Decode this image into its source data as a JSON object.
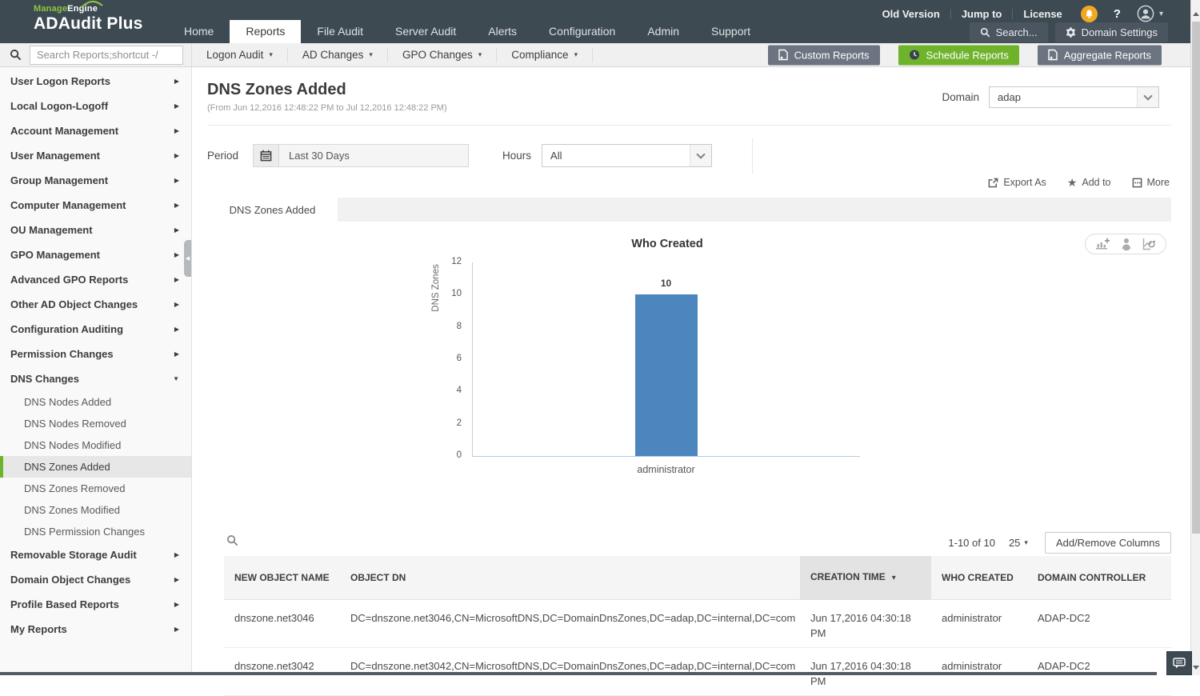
{
  "colors": {
    "header_bg": "#3e4a52",
    "accent_green": "#6fb32c",
    "button_gray": "#6b7480",
    "bar_blue": "#4d86be",
    "notification_amber": "#f0a822"
  },
  "header": {
    "brand_manage": "Manage",
    "brand_engine": "Engine",
    "product": "ADAudit Plus",
    "nav": [
      {
        "label": "Home",
        "active": false
      },
      {
        "label": "Reports",
        "active": true
      },
      {
        "label": "File Audit",
        "active": false
      },
      {
        "label": "Server Audit",
        "active": false
      },
      {
        "label": "Alerts",
        "active": false
      },
      {
        "label": "Configuration",
        "active": false
      },
      {
        "label": "Admin",
        "active": false
      },
      {
        "label": "Support",
        "active": false
      }
    ],
    "utility_links": [
      "Old Version",
      "Jump to",
      "License"
    ],
    "search_button": "Search...",
    "domain_settings_button": "Domain Settings"
  },
  "toolbar": {
    "search_placeholder": "Search Reports;shortcut -/",
    "menus": [
      "Logon Audit",
      "AD Changes",
      "GPO Changes",
      "Compliance"
    ],
    "actions": [
      {
        "label": "Custom Reports",
        "style": "gray",
        "icon": "report-doc"
      },
      {
        "label": "Schedule Reports",
        "style": "green",
        "icon": "clock"
      },
      {
        "label": "Aggregate Reports",
        "style": "gray",
        "icon": "report-doc"
      }
    ]
  },
  "sidebar": {
    "items": [
      {
        "label": "User Logon Reports",
        "expandable": true
      },
      {
        "label": "Local Logon-Logoff",
        "expandable": true
      },
      {
        "label": "Account Management",
        "expandable": true
      },
      {
        "label": "User Management",
        "expandable": true
      },
      {
        "label": "Group Management",
        "expandable": true
      },
      {
        "label": "Computer Management",
        "expandable": true
      },
      {
        "label": "OU Management",
        "expandable": true
      },
      {
        "label": "GPO Management",
        "expandable": true
      },
      {
        "label": "Advanced GPO Reports",
        "expandable": true
      },
      {
        "label": "Other AD Object Changes",
        "expandable": true
      },
      {
        "label": "Configuration Auditing",
        "expandable": true
      },
      {
        "label": "Permission Changes",
        "expandable": true
      },
      {
        "label": "DNS Changes",
        "expandable": true,
        "expanded": true,
        "children": [
          {
            "label": "DNS Nodes Added"
          },
          {
            "label": "DNS Nodes Removed"
          },
          {
            "label": "DNS Nodes Modified"
          },
          {
            "label": "DNS Zones Added",
            "selected": true
          },
          {
            "label": "DNS Zones Removed"
          },
          {
            "label": "DNS Zones Modified"
          },
          {
            "label": "DNS Permission Changes"
          }
        ]
      },
      {
        "label": "Removable Storage Audit",
        "expandable": true
      },
      {
        "label": "Domain Object Changes",
        "expandable": true
      },
      {
        "label": "Profile Based Reports",
        "expandable": true
      },
      {
        "label": "My Reports",
        "expandable": true
      }
    ]
  },
  "report": {
    "title": "DNS Zones Added",
    "date_range": "(From Jun 12,2016 12:48:22 PM to Jul 12,2016 12:48:22 PM)",
    "domain": {
      "label": "Domain",
      "value": "adap"
    },
    "period": {
      "label": "Period",
      "value": "Last 30 Days"
    },
    "hours": {
      "label": "Hours",
      "value": "All"
    },
    "actions": {
      "export_as": "Export As",
      "add_to": "Add to",
      "more": "More"
    },
    "tab_label": "DNS Zones Added"
  },
  "chart_data": {
    "type": "bar",
    "title": "Who Created",
    "categories": [
      "administrator"
    ],
    "values": [
      10
    ],
    "xlabel": "",
    "ylabel": "DNS Zones",
    "ylim": [
      0,
      12
    ],
    "yticks": [
      0,
      2,
      4,
      6,
      8,
      10,
      12
    ],
    "grid": false,
    "legend": false,
    "value_labels": true,
    "bar_color": "#4d86be"
  },
  "table": {
    "summary": "1-10 of 10",
    "page_size": "25",
    "add_remove_button": "Add/Remove Columns",
    "columns": [
      {
        "label": "NEW OBJECT NAME",
        "sorted": false
      },
      {
        "label": "OBJECT DN",
        "sorted": false
      },
      {
        "label": "CREATION TIME",
        "sorted": true
      },
      {
        "label": "WHO CREATED",
        "sorted": false
      },
      {
        "label": "DOMAIN CONTROLLER",
        "sorted": false
      }
    ],
    "rows": [
      [
        "dnszone.net3046",
        "DC=dnszone.net3046,CN=MicrosoftDNS,DC=DomainDnsZones,DC=adap,DC=internal,DC=com",
        "Jun 17,2016 04:30:18 PM",
        "administrator",
        "ADAP-DC2"
      ],
      [
        "dnszone.net3042",
        "DC=dnszone.net3042,CN=MicrosoftDNS,DC=DomainDnsZones,DC=adap,DC=internal,DC=com",
        "Jun 17,2016 04:30:18 PM",
        "administrator",
        "ADAP-DC2"
      ]
    ]
  },
  "icons": {
    "header": [
      "notification-bell",
      "help",
      "user-avatar",
      "magnifier",
      "gear"
    ],
    "toolbar": [
      "magnifier",
      "report-doc",
      "clock"
    ],
    "report": [
      "calendar",
      "export-arrow",
      "star",
      "boxed-dots"
    ],
    "chart_tools": [
      "add-chart",
      "person",
      "refresh-chart"
    ],
    "table": [
      "magnifier"
    ],
    "chat": "speech-bubble"
  }
}
